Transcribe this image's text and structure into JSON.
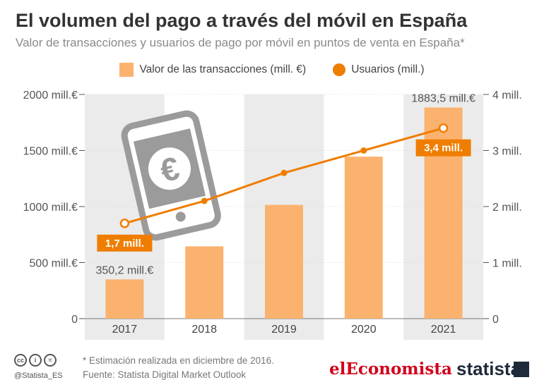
{
  "title": "El volumen del pago a través del móvil en España",
  "subtitle": "Valor de transacciones y usuarios de pago por móvil en puntos de venta en España*",
  "legend": {
    "bars": "Valor de las transacciones (mill. €)",
    "line": "Usuarios (mill.)"
  },
  "chart_data": {
    "type": "bar",
    "categories": [
      "2017",
      "2018",
      "2019",
      "2020",
      "2021"
    ],
    "series": [
      {
        "name": "Valor de las transacciones (mill. €)",
        "kind": "bar",
        "axis": "left",
        "values": [
          350.2,
          645,
          1015,
          1445,
          1883.5
        ]
      },
      {
        "name": "Usuarios (mill.)",
        "kind": "line",
        "axis": "right",
        "values": [
          1.7,
          2.1,
          2.6,
          3.0,
          3.4
        ]
      }
    ],
    "left_axis": {
      "ylim": [
        0,
        2000
      ],
      "ticks": [
        0,
        500,
        1000,
        1500,
        2000
      ],
      "tick_labels": [
        "0",
        "500 mill.€",
        "1000 mill.€",
        "1500 mill.€",
        "2000 mill.€"
      ]
    },
    "right_axis": {
      "ylim": [
        0,
        4
      ],
      "ticks": [
        0,
        1,
        2,
        3,
        4
      ],
      "tick_labels": [
        "0",
        "1 mill.",
        "2 mill.",
        "3 mill.",
        "4 mill."
      ]
    },
    "bar_labels": {
      "0": "350,2 mill.€",
      "4": "1883,5 mill.€"
    },
    "line_labels": {
      "0": "1,7 mill.",
      "4": "3,4 mill."
    },
    "colors": {
      "bar": "#fbb26e",
      "line": "#ef7d00",
      "band": "#ebebeb",
      "grid": "#dcdcdc"
    }
  },
  "footer": {
    "note": "* Estimación realizada en diciembre de 2016.",
    "source": "Fuente: Statista Digital Market Outlook",
    "handle": "@Statista_ES",
    "cc_icons": [
      "cc-icon",
      "attribution-icon",
      "no-derivatives-icon"
    ],
    "cc_glyphs": [
      "cc",
      "i",
      "="
    ]
  },
  "brands": {
    "eleconomista": "elEconomista",
    "statista": "statista"
  },
  "illustration": {
    "icon": "smartphone-euro-icon",
    "glyph": "€"
  }
}
